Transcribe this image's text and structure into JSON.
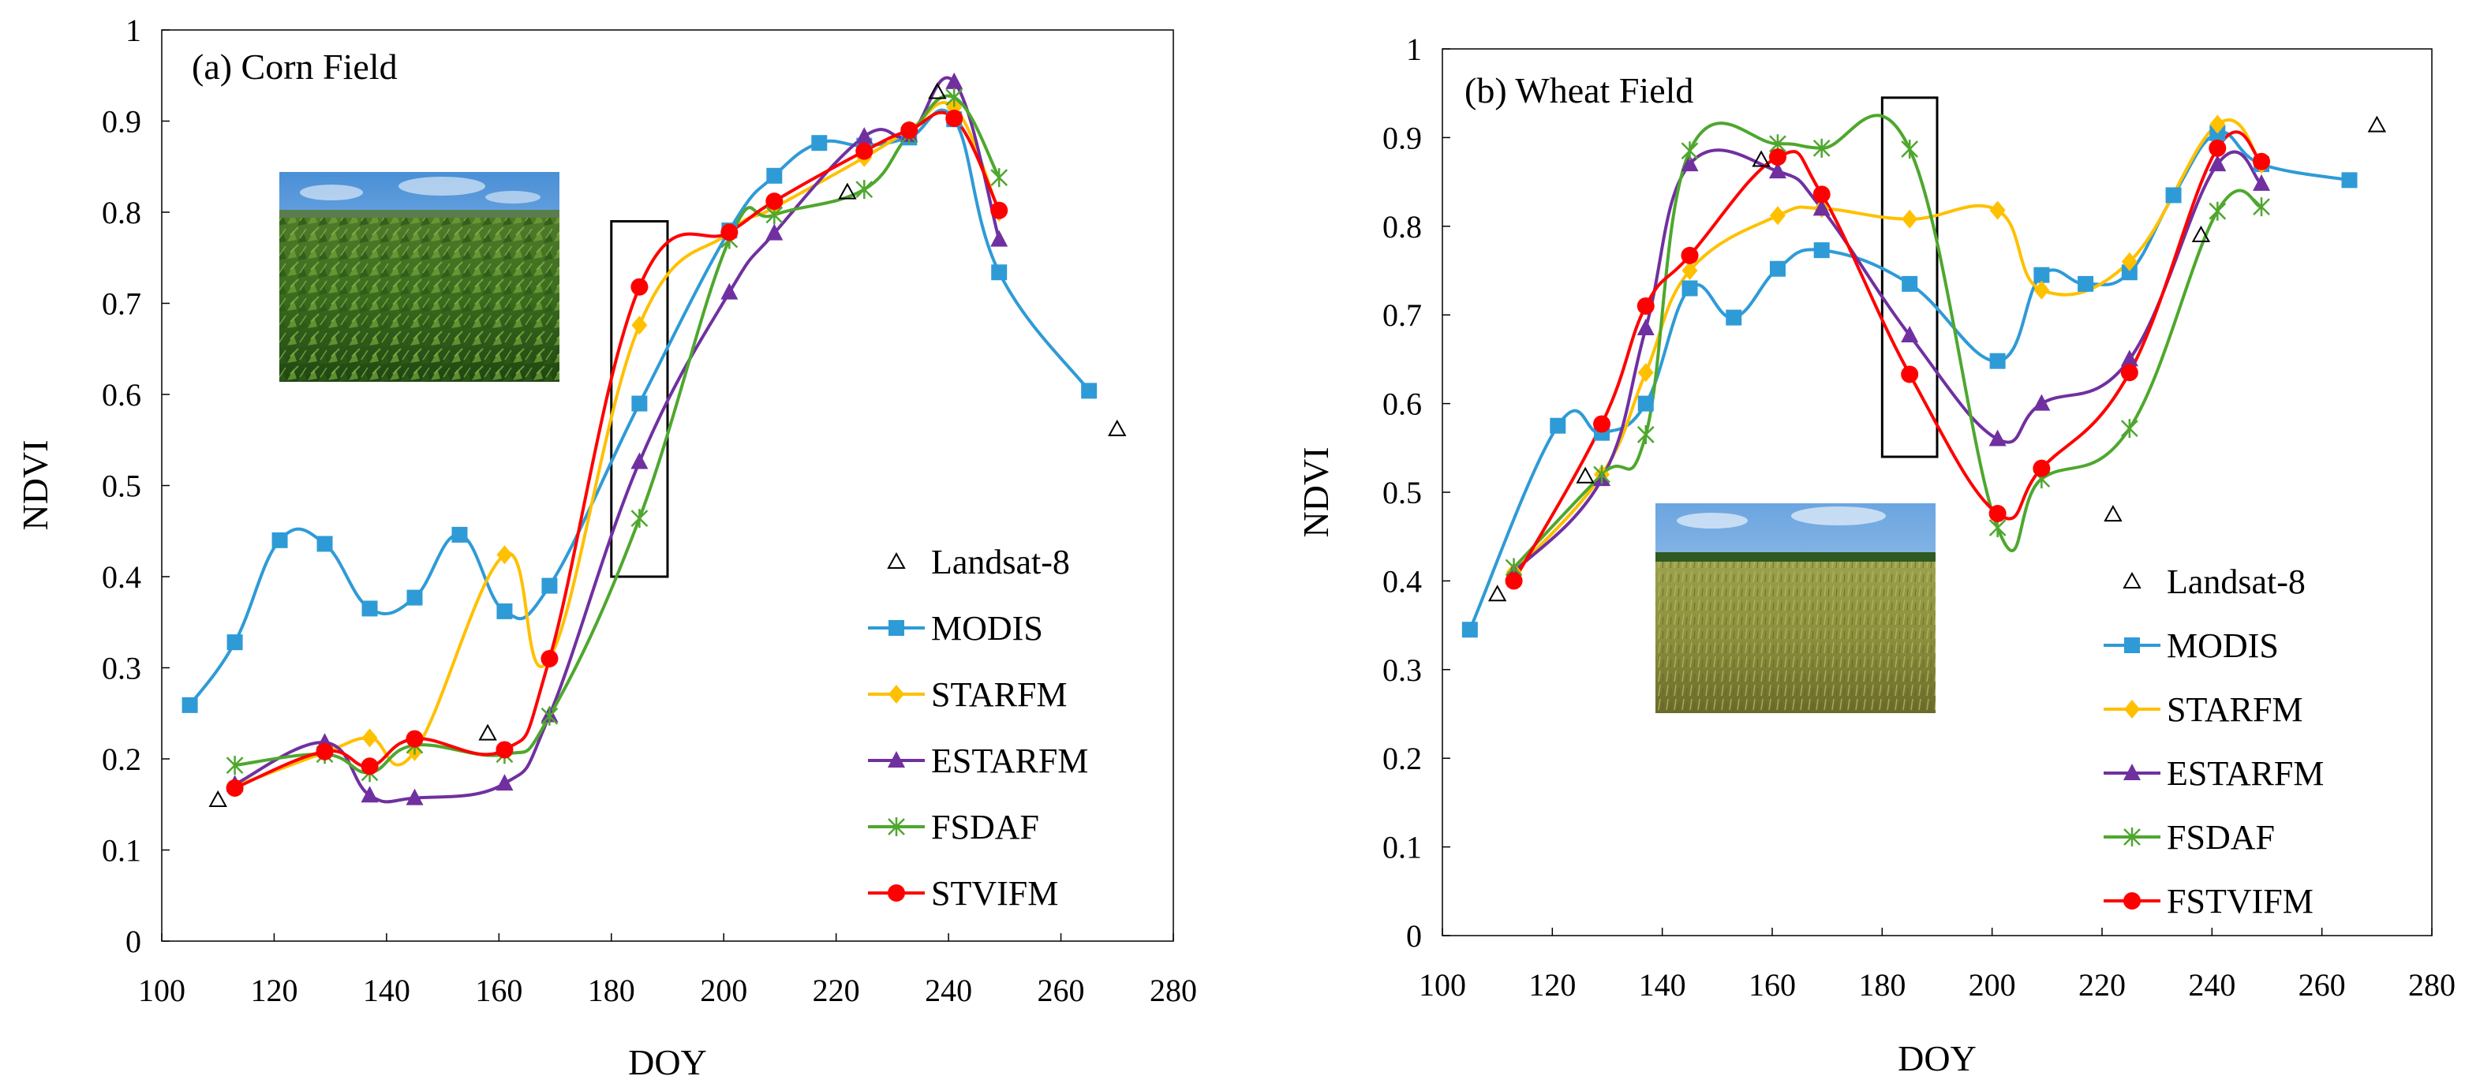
{
  "chart_data": [
    {
      "type": "line",
      "title": "(a) Corn Field",
      "xlabel": "DOY",
      "ylabel": "NDVI",
      "xlim": [
        100,
        280
      ],
      "ylim": [
        0,
        1
      ],
      "xticks": [
        "100",
        "120",
        "140",
        "160",
        "180",
        "200",
        "220",
        "240",
        "260",
        "280"
      ],
      "yticks": [
        "0",
        "0.1",
        "0.2",
        "0.3",
        "0.4",
        "0.5",
        "0.6",
        "0.7",
        "0.8",
        "0.9",
        "1"
      ],
      "grid": false,
      "legend_position": "bottom-right",
      "highlight_box": {
        "x": [
          180,
          190
        ],
        "y": [
          0.4,
          0.79
        ]
      },
      "photo": "corn-field-photo",
      "series": [
        {
          "name": "Landsat-8",
          "color": "#000000",
          "marker": "triangle-open",
          "line": false,
          "x": [
            110,
            158,
            222,
            238,
            270
          ],
          "y": [
            0.155,
            0.228,
            0.822,
            0.932,
            0.562
          ]
        },
        {
          "name": "MODIS",
          "color": "#2e9bd6",
          "marker": "square",
          "line": true,
          "x": [
            105,
            113,
            121,
            129,
            137,
            145,
            153,
            161,
            169,
            185,
            201,
            209,
            217,
            225,
            233,
            241,
            249,
            265
          ],
          "y": [
            0.259,
            0.328,
            0.44,
            0.436,
            0.365,
            0.377,
            0.446,
            0.362,
            0.39,
            0.59,
            0.78,
            0.84,
            0.876,
            0.873,
            0.882,
            0.902,
            0.734,
            0.604
          ]
        },
        {
          "name": "STARFM",
          "color": "#ffc000",
          "marker": "diamond",
          "line": true,
          "x": [
            113,
            129,
            137,
            145,
            161,
            169,
            185,
            201,
            209,
            225,
            233,
            241,
            249
          ],
          "y": [
            0.17,
            0.207,
            0.223,
            0.208,
            0.424,
            0.31,
            0.676,
            0.778,
            0.805,
            0.86,
            0.89,
            0.915,
            0.8
          ]
        },
        {
          "name": "ESTARFM",
          "color": "#7030a0",
          "marker": "triangle",
          "line": true,
          "x": [
            113,
            129,
            137,
            145,
            161,
            169,
            185,
            201,
            209,
            225,
            233,
            241,
            249
          ],
          "y": [
            0.172,
            0.218,
            0.16,
            0.157,
            0.173,
            0.248,
            0.526,
            0.712,
            0.777,
            0.883,
            0.885,
            0.943,
            0.77
          ]
        },
        {
          "name": "FSDAF",
          "color": "#4ea72e",
          "marker": "star",
          "line": true,
          "x": [
            113,
            129,
            137,
            145,
            161,
            169,
            185,
            201,
            209,
            225,
            233,
            241,
            249
          ],
          "y": [
            0.193,
            0.205,
            0.185,
            0.215,
            0.205,
            0.247,
            0.464,
            0.77,
            0.797,
            0.825,
            0.885,
            0.926,
            0.838
          ]
        },
        {
          "name": "STVIFM",
          "color": "#ff0000",
          "marker": "circle",
          "line": true,
          "x": [
            113,
            129,
            137,
            145,
            161,
            169,
            185,
            201,
            209,
            225,
            233,
            241,
            249
          ],
          "y": [
            0.168,
            0.208,
            0.192,
            0.222,
            0.21,
            0.31,
            0.718,
            0.778,
            0.812,
            0.867,
            0.89,
            0.903,
            0.802
          ]
        }
      ]
    },
    {
      "type": "line",
      "title": "(b) Wheat Field",
      "xlabel": "DOY",
      "ylabel": "NDVI",
      "xlim": [
        100,
        280
      ],
      "ylim": [
        0,
        1
      ],
      "xticks": [
        "100",
        "120",
        "140",
        "160",
        "180",
        "200",
        "220",
        "240",
        "260",
        "280"
      ],
      "yticks": [
        "0",
        "0.1",
        "0.2",
        "0.3",
        "0.4",
        "0.5",
        "0.6",
        "0.7",
        "0.8",
        "0.9",
        "1"
      ],
      "grid": false,
      "legend_position": "bottom-right",
      "highlight_box": {
        "x": [
          180,
          190
        ],
        "y": [
          0.54,
          0.945
        ]
      },
      "photo": "wheat-field-photo",
      "series": [
        {
          "name": "Landsat-8",
          "color": "#000000",
          "marker": "triangle-open",
          "line": false,
          "x": [
            110,
            126,
            158,
            222,
            238,
            270
          ],
          "y": [
            0.385,
            0.518,
            0.875,
            0.475,
            0.79,
            0.914
          ]
        },
        {
          "name": "MODIS",
          "color": "#2e9bd6",
          "marker": "square",
          "line": true,
          "x": [
            105,
            121,
            129,
            137,
            145,
            153,
            161,
            169,
            185,
            201,
            209,
            217,
            225,
            233,
            241,
            249,
            265
          ],
          "y": [
            0.345,
            0.575,
            0.567,
            0.6,
            0.73,
            0.697,
            0.752,
            0.773,
            0.735,
            0.648,
            0.745,
            0.735,
            0.748,
            0.835,
            0.905,
            0.87,
            0.852
          ]
        },
        {
          "name": "STARFM",
          "color": "#ffc000",
          "marker": "diamond",
          "line": true,
          "x": [
            113,
            129,
            137,
            145,
            161,
            169,
            185,
            201,
            209,
            225,
            241,
            249
          ],
          "y": [
            0.41,
            0.52,
            0.635,
            0.75,
            0.812,
            0.82,
            0.808,
            0.818,
            0.728,
            0.76,
            0.915,
            0.87
          ]
        },
        {
          "name": "ESTARFM",
          "color": "#7030a0",
          "marker": "triangle",
          "line": true,
          "x": [
            113,
            129,
            137,
            145,
            161,
            169,
            185,
            201,
            209,
            225,
            241,
            249
          ],
          "y": [
            0.41,
            0.515,
            0.685,
            0.87,
            0.862,
            0.82,
            0.677,
            0.56,
            0.6,
            0.65,
            0.87,
            0.848
          ]
        },
        {
          "name": "FSDAF",
          "color": "#4ea72e",
          "marker": "star",
          "line": true,
          "x": [
            113,
            129,
            137,
            145,
            161,
            169,
            185,
            201,
            209,
            225,
            241,
            249
          ],
          "y": [
            0.415,
            0.52,
            0.565,
            0.885,
            0.893,
            0.888,
            0.887,
            0.46,
            0.515,
            0.572,
            0.817,
            0.822
          ]
        },
        {
          "name": "FSTVIFM",
          "color": "#ff0000",
          "marker": "circle",
          "line": true,
          "x": [
            113,
            129,
            137,
            145,
            161,
            169,
            185,
            201,
            209,
            225,
            241,
            249
          ],
          "y": [
            0.4,
            0.577,
            0.71,
            0.767,
            0.878,
            0.836,
            0.633,
            0.476,
            0.527,
            0.635,
            0.888,
            0.873
          ]
        }
      ]
    }
  ]
}
